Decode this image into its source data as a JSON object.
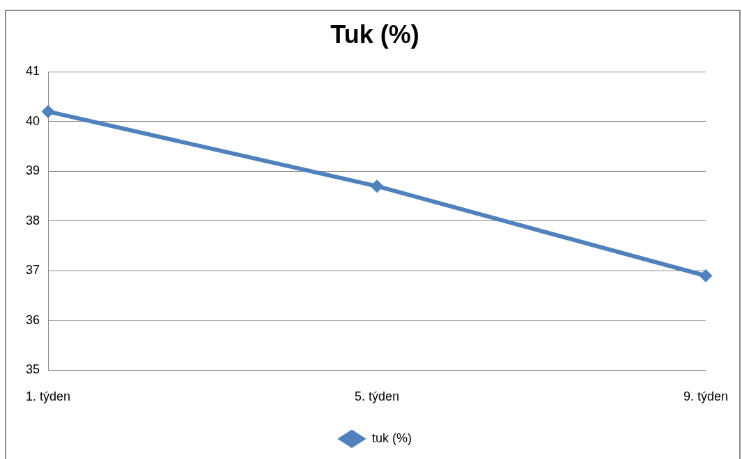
{
  "chart_data": {
    "type": "line",
    "title": "Tuk (%)",
    "categories": [
      "1. týden",
      "5. týden",
      "9. týden"
    ],
    "series": [
      {
        "name": "tuk (%)",
        "color": "#4f81bd",
        "values": [
          40.2,
          38.7,
          36.9
        ]
      }
    ],
    "ylim": [
      35,
      41
    ],
    "yticks": [
      35,
      36,
      37,
      38,
      39,
      40,
      41
    ],
    "grid": "y",
    "legend": "bottom",
    "marker": "diamond",
    "line_style": "solid"
  }
}
